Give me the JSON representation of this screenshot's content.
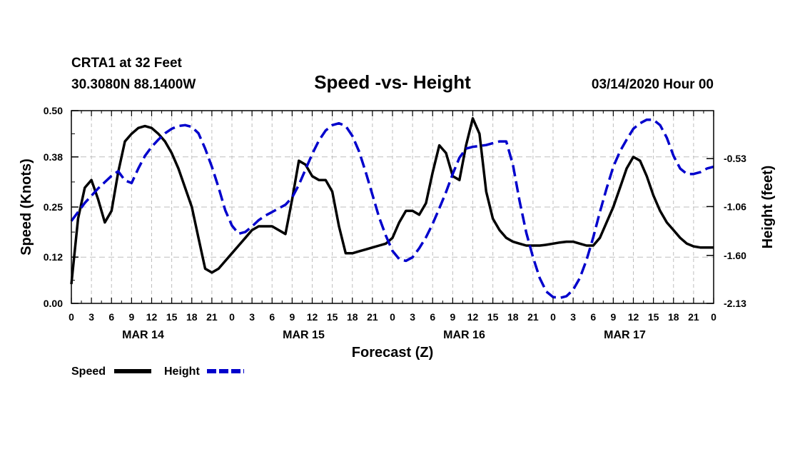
{
  "header": {
    "station": "CRTA1 at 32 Feet",
    "coords": "30.3080N 88.1400W",
    "title": "Speed -vs- Height",
    "date": "03/14/2020 Hour 00"
  },
  "chart_data": {
    "type": "line",
    "title": "Speed -vs- Height",
    "xlabel": "Forecast (Z)",
    "ylabel_left": "Speed (Knots)",
    "ylabel_right": "Height (feet)",
    "xlim": [
      0,
      96
    ],
    "ylim_left": [
      0,
      0.5
    ],
    "ylim_right": [
      -2.13,
      0.0
    ],
    "left_ticks": [
      "0.00",
      "0.12",
      "0.25",
      "0.38",
      "0.50"
    ],
    "right_ticks": [
      "-2.13",
      "-1.60",
      "-1.06",
      "-0.53"
    ],
    "x_tick_labels": [
      "0",
      "3",
      "6",
      "9",
      "12",
      "15",
      "18",
      "21",
      "0",
      "3",
      "6",
      "9",
      "12",
      "15",
      "18",
      "21",
      "0",
      "3",
      "6",
      "9",
      "12",
      "15",
      "18",
      "21",
      "0",
      "3",
      "6",
      "9",
      "12",
      "15",
      "18",
      "21",
      "0"
    ],
    "day_labels": [
      "MAR 14",
      "MAR 15",
      "MAR 16",
      "MAR 17"
    ],
    "grid": true,
    "series": [
      {
        "name": "Speed",
        "axis": "left",
        "color": "#000000",
        "style": "solid",
        "x": [
          0,
          1,
          2,
          3,
          4,
          5,
          6,
          7,
          8,
          9,
          10,
          11,
          12,
          13,
          14,
          15,
          16,
          17,
          18,
          19,
          20,
          21,
          22,
          23,
          24,
          25,
          26,
          27,
          28,
          29,
          30,
          31,
          32,
          33,
          34,
          35,
          36,
          37,
          38,
          39,
          40,
          41,
          42,
          43,
          44,
          45,
          46,
          47,
          48,
          49,
          50,
          51,
          52,
          53,
          54,
          55,
          56,
          57,
          58,
          59,
          60,
          61,
          62,
          63,
          64,
          65,
          66,
          67,
          68,
          69,
          70,
          71,
          72,
          73,
          74,
          75,
          76,
          77,
          78,
          79,
          80,
          81,
          82,
          83,
          84,
          85,
          86,
          87,
          88,
          89,
          90,
          91,
          92,
          93,
          94,
          95,
          96
        ],
        "values": [
          0.05,
          0.22,
          0.3,
          0.32,
          0.27,
          0.21,
          0.24,
          0.34,
          0.42,
          0.44,
          0.455,
          0.46,
          0.455,
          0.44,
          0.42,
          0.39,
          0.35,
          0.3,
          0.25,
          0.17,
          0.09,
          0.08,
          0.09,
          0.11,
          0.13,
          0.15,
          0.17,
          0.19,
          0.2,
          0.2,
          0.2,
          0.19,
          0.18,
          0.27,
          0.37,
          0.36,
          0.33,
          0.32,
          0.32,
          0.29,
          0.2,
          0.13,
          0.13,
          0.135,
          0.14,
          0.145,
          0.15,
          0.155,
          0.17,
          0.21,
          0.24,
          0.24,
          0.23,
          0.26,
          0.34,
          0.41,
          0.39,
          0.33,
          0.32,
          0.41,
          0.48,
          0.44,
          0.29,
          0.22,
          0.19,
          0.17,
          0.16,
          0.155,
          0.15,
          0.15,
          0.15,
          0.152,
          0.155,
          0.158,
          0.16,
          0.16,
          0.155,
          0.15,
          0.15,
          0.17,
          0.21,
          0.25,
          0.3,
          0.35,
          0.38,
          0.37,
          0.33,
          0.28,
          0.24,
          0.21,
          0.19,
          0.17,
          0.155,
          0.148,
          0.145,
          0.145,
          0.145
        ]
      },
      {
        "name": "Height",
        "axis": "right",
        "color": "#0000cc",
        "style": "dashed",
        "x": [
          0,
          1,
          2,
          3,
          4,
          5,
          6,
          7,
          8,
          9,
          10,
          11,
          12,
          13,
          14,
          15,
          16,
          17,
          18,
          19,
          20,
          21,
          22,
          23,
          24,
          25,
          26,
          27,
          28,
          29,
          30,
          31,
          32,
          33,
          34,
          35,
          36,
          37,
          38,
          39,
          40,
          41,
          42,
          43,
          44,
          45,
          46,
          47,
          48,
          49,
          50,
          51,
          52,
          53,
          54,
          55,
          56,
          57,
          58,
          59,
          60,
          61,
          62,
          63,
          64,
          65,
          66,
          67,
          68,
          69,
          70,
          71,
          72,
          73,
          74,
          75,
          76,
          77,
          78,
          79,
          80,
          81,
          82,
          83,
          84,
          85,
          86,
          87,
          88,
          89,
          90,
          91,
          92,
          93,
          94,
          95,
          96
        ],
        "values": [
          -1.22,
          -1.12,
          -1.02,
          -0.94,
          -0.86,
          -0.79,
          -0.72,
          -0.67,
          -0.77,
          -0.8,
          -0.64,
          -0.5,
          -0.4,
          -0.32,
          -0.25,
          -0.2,
          -0.17,
          -0.16,
          -0.18,
          -0.25,
          -0.42,
          -0.62,
          -0.85,
          -1.1,
          -1.27,
          -1.36,
          -1.34,
          -1.28,
          -1.21,
          -1.16,
          -1.12,
          -1.08,
          -1.04,
          -0.96,
          -0.82,
          -0.65,
          -0.48,
          -0.33,
          -0.22,
          -0.16,
          -0.14,
          -0.17,
          -0.28,
          -0.45,
          -0.68,
          -0.93,
          -1.18,
          -1.38,
          -1.55,
          -1.64,
          -1.66,
          -1.62,
          -1.52,
          -1.4,
          -1.25,
          -1.08,
          -0.9,
          -0.7,
          -0.52,
          -0.42,
          -0.4,
          -0.39,
          -0.38,
          -0.36,
          -0.34,
          -0.34,
          -0.6,
          -1.0,
          -1.35,
          -1.62,
          -1.85,
          -2.0,
          -2.06,
          -2.07,
          -2.05,
          -1.98,
          -1.85,
          -1.65,
          -1.4,
          -1.12,
          -0.86,
          -0.62,
          -0.45,
          -0.32,
          -0.2,
          -0.14,
          -0.1,
          -0.1,
          -0.16,
          -0.3,
          -0.5,
          -0.64,
          -0.7,
          -0.7,
          -0.68,
          -0.64,
          -0.62
        ]
      }
    ],
    "legend": [
      {
        "label": "Speed",
        "color": "#000000",
        "style": "solid"
      },
      {
        "label": "Height",
        "color": "#0000cc",
        "style": "dashed"
      }
    ]
  }
}
